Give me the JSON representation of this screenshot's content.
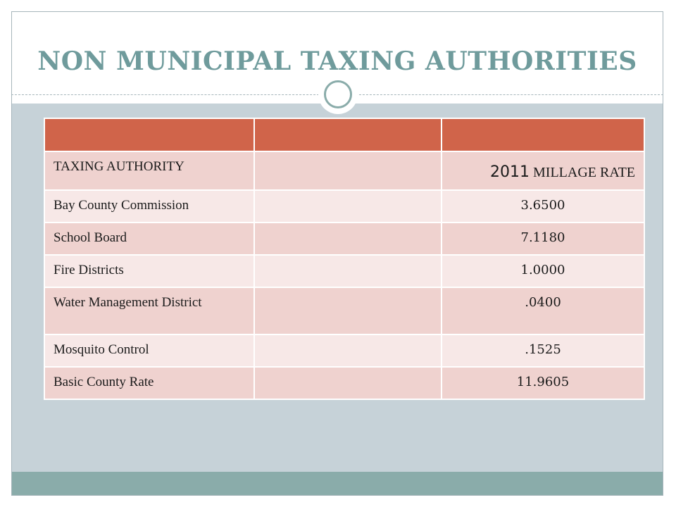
{
  "slide": {
    "title": "NON MUNICIPAL TAXING AUTHORITIES"
  },
  "table": {
    "header": {
      "authority": "TAXING AUTHORITY",
      "year": "2011",
      "rate_label": " MILLAGE RATE"
    },
    "rows": [
      {
        "authority": "Bay County Commission",
        "rate": "3.6500"
      },
      {
        "authority": "School Board",
        "rate": "7.1180"
      },
      {
        "authority": "Fire Districts",
        "rate": "1.0000"
      },
      {
        "authority": "Water Management District",
        "rate": ".0400"
      },
      {
        "authority": "Mosquito Control",
        "rate": ".1525"
      },
      {
        "authority": "Basic County Rate",
        "rate": "11.9605"
      }
    ]
  },
  "colors": {
    "title": "#6f9b9c",
    "header_bar": "#d0644a",
    "row_dark": "#efd2cf",
    "row_light": "#f7e8e7",
    "body_background": "#c6d2d8",
    "footer_bar": "#8aacaa"
  }
}
